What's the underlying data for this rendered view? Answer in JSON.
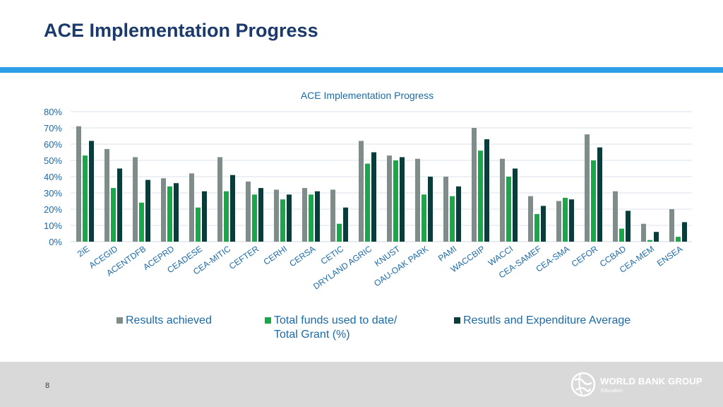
{
  "slide": {
    "title": "ACE Implementation Progress",
    "page_number": "8"
  },
  "logo": {
    "name": "WORLD BANK GROUP",
    "subtitle": "Education"
  },
  "colors": {
    "title": "#1b3a6b",
    "accent_bar": "#2e9fe6",
    "text_blue": "#1b6aa8",
    "footer_bg": "#d9d9d9"
  },
  "chart_data": {
    "type": "bar",
    "title": "ACE Implementation Progress",
    "xlabel": "",
    "ylabel": "",
    "ylim": [
      0,
      80
    ],
    "y_ticks": [
      "0%",
      "10%",
      "20%",
      "30%",
      "40%",
      "50%",
      "60%",
      "70%",
      "80%"
    ],
    "grid": true,
    "legend_position": "bottom",
    "categories": [
      "2iE",
      "ACEGID",
      "ACENTDFB",
      "ACEPRD",
      "CEADESE",
      "CEA-MITIC",
      "CEFTER",
      "CERHI",
      "CERSA",
      "CETIC",
      "DRYLAND AGRIC",
      "KNUST",
      "OAU-OAK PARK",
      "PAMI",
      "WACCBIP",
      "WACCI",
      "CEA-SAMEF",
      "CEA-SMA",
      "CEFOR",
      "CCBAD",
      "CEA-MEM",
      "ENSEA"
    ],
    "series": [
      {
        "name": "Results achieved",
        "color": "#7f8c89",
        "values": [
          71,
          57,
          52,
          39,
          42,
          52,
          37,
          32,
          33,
          32,
          62,
          53,
          51,
          40,
          70,
          51,
          28,
          25,
          66,
          31,
          11,
          20
        ]
      },
      {
        "name": "Total funds used to date/ Total Grant (%)",
        "color": "#18a84a",
        "values": [
          53,
          33,
          24,
          34,
          21,
          31,
          29,
          26,
          29,
          11,
          48,
          50,
          29,
          28,
          56,
          40,
          17,
          27,
          50,
          8,
          1,
          3
        ]
      },
      {
        "name": "Resutls and Expenditure Average",
        "color": "#0a3d3a",
        "values": [
          62,
          45,
          38,
          36,
          31,
          41,
          33,
          29,
          31,
          21,
          55,
          52,
          40,
          34,
          63,
          45,
          22,
          26,
          58,
          19,
          6,
          12
        ]
      }
    ]
  },
  "legend": {
    "items": [
      {
        "label": "Results achieved",
        "color": "#7f8c89"
      },
      {
        "label_line1": "Total funds used to date/",
        "label_line2": "Total Grant (%)",
        "color": "#18a84a"
      },
      {
        "label": "Resutls and Expenditure Average",
        "color": "#0a3d3a"
      }
    ]
  }
}
